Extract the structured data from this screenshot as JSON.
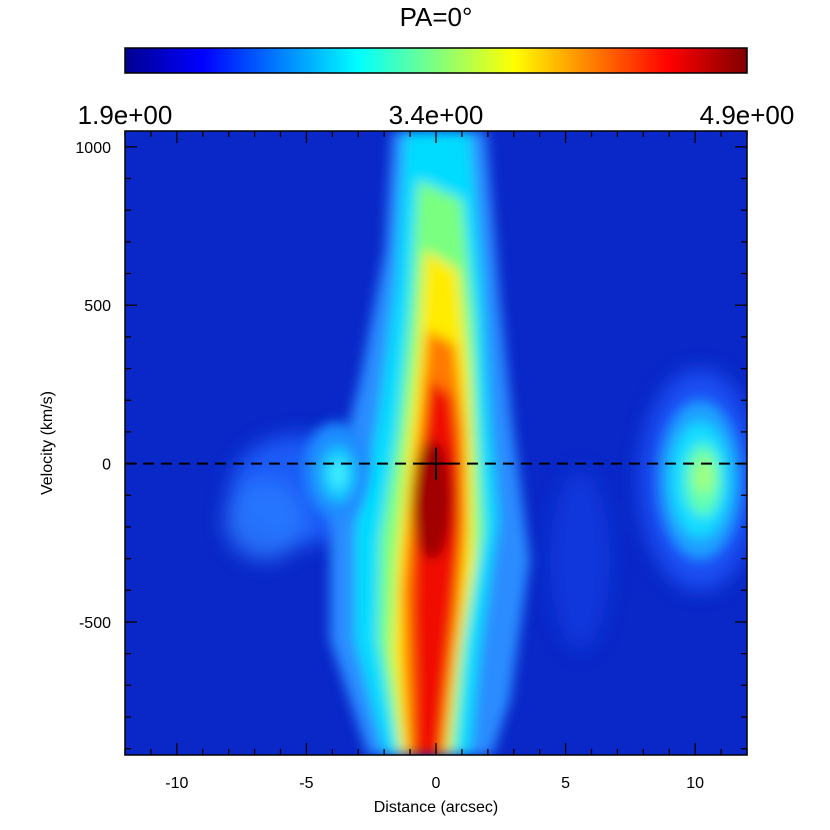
{
  "chart_data": {
    "type": "heatmap",
    "title": "PA=0°",
    "xlabel": "Distance (arcsec)",
    "ylabel": "Velocity (km/s)",
    "xlim": [
      -12,
      12
    ],
    "ylim": [
      -920,
      1050
    ],
    "x_ticks": [
      -10,
      -5,
      0,
      5,
      10
    ],
    "x_tick_labels": [
      "-10",
      "-5",
      "0",
      "5",
      "10"
    ],
    "y_ticks": [
      -500,
      0,
      500,
      1000
    ],
    "y_tick_labels": [
      "-500",
      "0",
      "500",
      "1000"
    ],
    "colorbar": {
      "min": 1.9,
      "mid": 3.4,
      "max": 4.9,
      "labels": [
        "1.9e+00",
        "3.4e+00",
        "4.9e+00"
      ],
      "colormap": "jet",
      "placement": "top"
    },
    "reference_line": {
      "axis": "y",
      "value": 0,
      "style": "dashed"
    },
    "center_marker": {
      "x": 0,
      "y": 0,
      "style": "cross"
    },
    "features": [
      {
        "name": "central vertical band",
        "x": 0.3,
        "y_range": [
          -920,
          1050
        ],
        "peak_value": 4.9,
        "peak_velocity": -120
      },
      {
        "name": "left knot",
        "x": -3.8,
        "y": -10,
        "peak_value": 3.2
      },
      {
        "name": "right knot",
        "x": 10.4,
        "y": -60,
        "peak_value": 3.3
      }
    ],
    "grid": false
  }
}
